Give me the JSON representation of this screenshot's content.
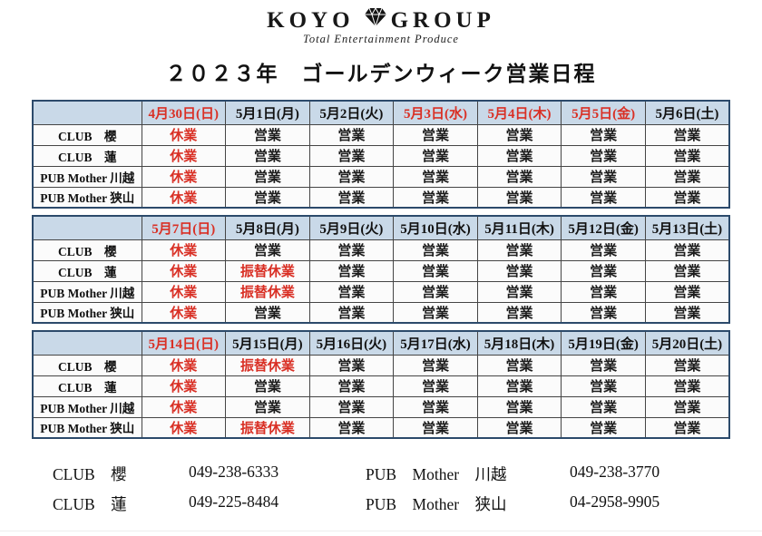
{
  "logo": {
    "left": "KOYO",
    "right": "GROUP",
    "tagline": "Total Entertainment Produce",
    "icon": "diamond-icon"
  },
  "page": {
    "title": "２０２３年　ゴールデンウィーク営業日程"
  },
  "legend": {
    "open_label": "営業",
    "closed_label": "休業",
    "substitute_closed_label": "振替休業",
    "red_values": [
      "休業",
      "振替休業"
    ]
  },
  "colors": {
    "red": "#d93025",
    "header_bg": "#c9d9e8",
    "outer_border": "#2c4a6b"
  },
  "tables": [
    {
      "dates": [
        {
          "label": "4月30日(日)",
          "red": true
        },
        {
          "label": "5月1日(月)",
          "red": false
        },
        {
          "label": "5月2日(火)",
          "red": false
        },
        {
          "label": "5月3日(水)",
          "red": true
        },
        {
          "label": "5月4日(木)",
          "red": true
        },
        {
          "label": "5月5日(金)",
          "red": true
        },
        {
          "label": "5月6日(土)",
          "red": false
        }
      ],
      "rows": [
        {
          "venue": "CLUB　櫻",
          "cells": [
            "休業",
            "営業",
            "営業",
            "営業",
            "営業",
            "営業",
            "営業"
          ]
        },
        {
          "venue": "CLUB　蓮",
          "cells": [
            "休業",
            "営業",
            "営業",
            "営業",
            "営業",
            "営業",
            "営業"
          ]
        },
        {
          "venue": "PUB Mother 川越",
          "cells": [
            "休業",
            "営業",
            "営業",
            "営業",
            "営業",
            "営業",
            "営業"
          ]
        },
        {
          "venue": "PUB Mother 狭山",
          "cells": [
            "休業",
            "営業",
            "営業",
            "営業",
            "営業",
            "営業",
            "営業"
          ]
        }
      ]
    },
    {
      "dates": [
        {
          "label": "5月7日(日)",
          "red": true
        },
        {
          "label": "5月8日(月)",
          "red": false
        },
        {
          "label": "5月9日(火)",
          "red": false
        },
        {
          "label": "5月10日(水)",
          "red": false
        },
        {
          "label": "5月11日(木)",
          "red": false
        },
        {
          "label": "5月12日(金)",
          "red": false
        },
        {
          "label": "5月13日(土)",
          "red": false
        }
      ],
      "rows": [
        {
          "venue": "CLUB　櫻",
          "cells": [
            "休業",
            "営業",
            "営業",
            "営業",
            "営業",
            "営業",
            "営業"
          ]
        },
        {
          "venue": "CLUB　蓮",
          "cells": [
            "休業",
            "振替休業",
            "営業",
            "営業",
            "営業",
            "営業",
            "営業"
          ]
        },
        {
          "venue": "PUB Mother 川越",
          "cells": [
            "休業",
            "振替休業",
            "営業",
            "営業",
            "営業",
            "営業",
            "営業"
          ]
        },
        {
          "venue": "PUB Mother 狭山",
          "cells": [
            "休業",
            "営業",
            "営業",
            "営業",
            "営業",
            "営業",
            "営業"
          ]
        }
      ]
    },
    {
      "dates": [
        {
          "label": "5月14日(日)",
          "red": true
        },
        {
          "label": "5月15日(月)",
          "red": false
        },
        {
          "label": "5月16日(火)",
          "red": false
        },
        {
          "label": "5月17日(水)",
          "red": false
        },
        {
          "label": "5月18日(木)",
          "red": false
        },
        {
          "label": "5月19日(金)",
          "red": false
        },
        {
          "label": "5月20日(土)",
          "red": false
        }
      ],
      "rows": [
        {
          "venue": "CLUB　櫻",
          "cells": [
            "休業",
            "振替休業",
            "営業",
            "営業",
            "営業",
            "営業",
            "営業"
          ]
        },
        {
          "venue": "CLUB　蓮",
          "cells": [
            "休業",
            "営業",
            "営業",
            "営業",
            "営業",
            "営業",
            "営業"
          ]
        },
        {
          "venue": "PUB Mother 川越",
          "cells": [
            "休業",
            "営業",
            "営業",
            "営業",
            "営業",
            "営業",
            "営業"
          ]
        },
        {
          "venue": "PUB Mother 狭山",
          "cells": [
            "休業",
            "振替休業",
            "営業",
            "営業",
            "営業",
            "営業",
            "営業"
          ]
        }
      ]
    }
  ],
  "contacts": [
    {
      "name": "CLUB　櫻",
      "phone": "049-238-6333"
    },
    {
      "name": "CLUB　蓮",
      "phone": "049-225-8484"
    },
    {
      "name": "PUB　Mother　川越",
      "phone": "049-238-3770"
    },
    {
      "name": "PUB　Mother　狭山",
      "phone": "04-2958-9905"
    }
  ]
}
